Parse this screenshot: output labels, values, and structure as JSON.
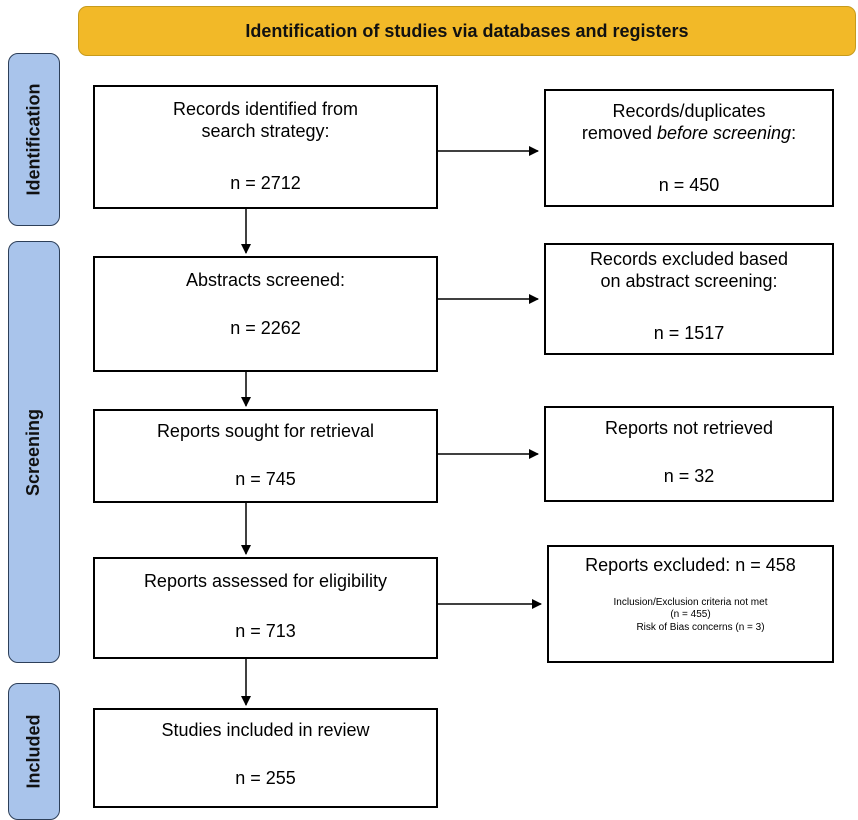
{
  "header": {
    "title": "Identification of studies via databases and registers"
  },
  "phases": {
    "identification": "Identification",
    "screening": "Screening",
    "included": "Included"
  },
  "boxes": {
    "records_identified": {
      "title_line1": "Records identified from",
      "title_line2": "search strategy:",
      "count": "n = 2712"
    },
    "duplicates_removed": {
      "title_line1": "Records/duplicates",
      "title_line2_plain": "removed ",
      "title_line2_italic": "before screening",
      "title_line2_suffix": ":",
      "count": "n = 450"
    },
    "abstracts_screened": {
      "title": "Abstracts screened:",
      "count": "n = 2262"
    },
    "excluded_abstract": {
      "title_line1": "Records excluded based",
      "title_line2": "on abstract screening:",
      "count": "n = 1517"
    },
    "reports_sought": {
      "title": "Reports sought for retrieval",
      "count": "n = 745"
    },
    "not_retrieved": {
      "title": "Reports not retrieved",
      "count": "n = 32"
    },
    "reports_assessed": {
      "title": "Reports assessed for eligibility",
      "count": "n = 713"
    },
    "reports_excluded": {
      "title": "Reports excluded: n = 458",
      "detail_1": "Inclusion/Exclusion criteria not met",
      "detail_2": "(n = 455)",
      "detail_3": "Risk of Bias concerns (n = 3)"
    },
    "studies_included": {
      "title": "Studies included in review",
      "count": "n = 255"
    }
  },
  "colors": {
    "header_fill": "#f2b928",
    "phase_fill": "#a9c4eb",
    "box_border": "#000000"
  }
}
